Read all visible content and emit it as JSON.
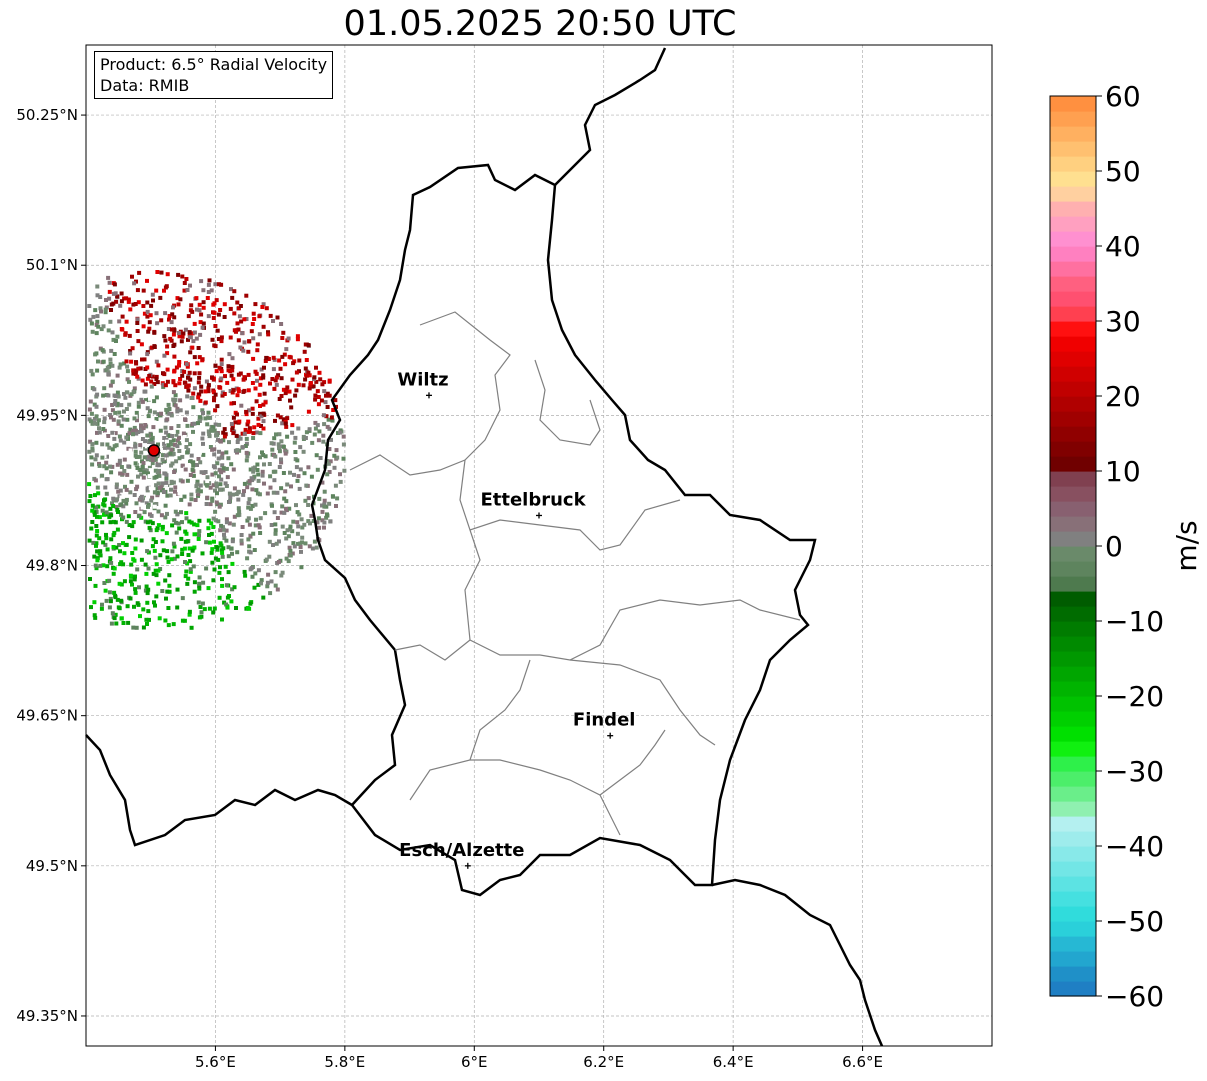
{
  "title": "01.05.2025 20:50 UTC",
  "info_box": {
    "product": "Product: 6.5° Radial Velocity",
    "data": "Data: RMIB"
  },
  "map": {
    "lon_range": [
      5.4,
      6.8
    ],
    "lat_range": [
      49.32,
      50.32
    ],
    "lon_ticks": [
      {
        "value": 5.6,
        "label": "5.6°E"
      },
      {
        "value": 5.8,
        "label": "5.8°E"
      },
      {
        "value": 6.0,
        "label": "6°E"
      },
      {
        "value": 6.2,
        "label": "6.2°E"
      },
      {
        "value": 6.4,
        "label": "6.4°E"
      },
      {
        "value": 6.6,
        "label": "6.6°E"
      }
    ],
    "lat_ticks": [
      {
        "value": 49.35,
        "label": "49.35°N"
      },
      {
        "value": 49.5,
        "label": "49.5°N"
      },
      {
        "value": 49.65,
        "label": "49.65°N"
      },
      {
        "value": 49.8,
        "label": "49.8°N"
      },
      {
        "value": 49.95,
        "label": "49.95°N"
      },
      {
        "value": 50.1,
        "label": "50.1°N"
      },
      {
        "value": 50.25,
        "label": "50.25°N"
      }
    ],
    "gridlines": true,
    "cities": [
      {
        "name": "Wiltz",
        "lon": 5.93,
        "lat": 49.97
      },
      {
        "name": "Ettelbruck",
        "lon": 6.1,
        "lat": 49.85
      },
      {
        "name": "Findel",
        "lon": 6.21,
        "lat": 49.63
      },
      {
        "name": "Esch/Alzette",
        "lon": 5.99,
        "lat": 49.5
      }
    ],
    "radar_site": {
      "lon": 5.505,
      "lat": 49.915,
      "color": "#e00000"
    },
    "border_color": "#000000",
    "canton_color": "#808080"
  },
  "colorbar": {
    "label": "m/s",
    "min": -60,
    "max": 60,
    "ticks": [
      {
        "value": 60,
        "label": "60"
      },
      {
        "value": 50,
        "label": "50"
      },
      {
        "value": 40,
        "label": "40"
      },
      {
        "value": 30,
        "label": "30"
      },
      {
        "value": 20,
        "label": "20"
      },
      {
        "value": 10,
        "label": "10"
      },
      {
        "value": 0,
        "label": "0"
      },
      {
        "value": -10,
        "label": "−10"
      },
      {
        "value": -20,
        "label": "−20"
      },
      {
        "value": -30,
        "label": "−30"
      },
      {
        "value": -40,
        "label": "−40"
      },
      {
        "value": -50,
        "label": "−50"
      },
      {
        "value": -60,
        "label": "−60"
      }
    ],
    "colors_bottom_to_top": [
      "#1f7fc4",
      "#1f90c8",
      "#22a6cf",
      "#26b8d4",
      "#2ad0da",
      "#30dcdc",
      "#45e0e0",
      "#5ce3e3",
      "#72e6e6",
      "#88e9e9",
      "#9eecec",
      "#b4f0f0",
      "#8ff0b0",
      "#6aee8a",
      "#4cee6a",
      "#2ef04a",
      "#10f010",
      "#00e000",
      "#00d000",
      "#00c200",
      "#00b400",
      "#00a600",
      "#009800",
      "#008a00",
      "#007c00",
      "#006c00",
      "#005c00",
      "#4e7a4e",
      "#5e845e",
      "#6a8a6a",
      "#808080",
      "#887078",
      "#886070",
      "#885060",
      "#804050",
      "#700000",
      "#800000",
      "#900000",
      "#a00000",
      "#b00000",
      "#c00000",
      "#d00000",
      "#e00000",
      "#f00000",
      "#ff1010",
      "#ff4050",
      "#ff5070",
      "#ff6080",
      "#ff70a0",
      "#ff80c0",
      "#ff90d0",
      "#ffa0c0",
      "#ffb0b0",
      "#ffd0a0",
      "#ffe090",
      "#ffd080",
      "#ffc070",
      "#ffb060",
      "#ffa050",
      "#ff9040"
    ]
  }
}
